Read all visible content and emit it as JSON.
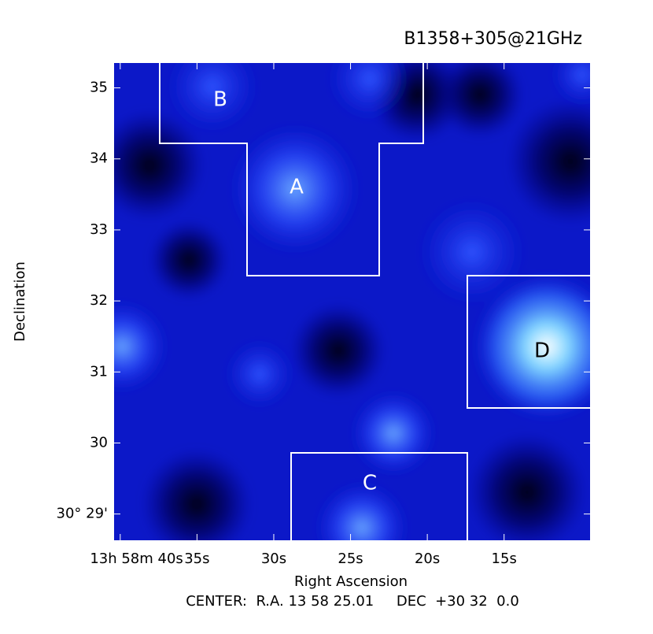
{
  "chart_data": {
    "type": "image",
    "title": "B1358+305@21GHz",
    "xlabel": "Right Ascension",
    "ylabel": "Declination",
    "footer": "CENTER:  R.A. 13 58 25.01     DEC  +30 32  0.0",
    "xlim": [
      40.4,
      9.4
    ],
    "xticks": [
      {
        "value": 40,
        "label": "13h 58m 40s"
      },
      {
        "value": 35,
        "label": "35s"
      },
      {
        "value": 30,
        "label": "30s"
      },
      {
        "value": 25,
        "label": "25s"
      },
      {
        "value": 20,
        "label": "20s"
      },
      {
        "value": 15,
        "label": "15s"
      }
    ],
    "ylim": [
      28.63,
      35.35
    ],
    "yticks": [
      {
        "value": 29,
        "label": "30° 29'"
      },
      30,
      31,
      32,
      33,
      34,
      35
    ],
    "regions": [
      "A",
      "B",
      "C",
      "D"
    ]
  }
}
